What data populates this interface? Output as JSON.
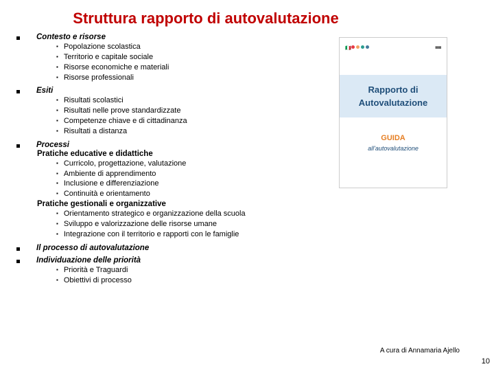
{
  "title": "Struttura rapporto di autovalutazione",
  "sections": [
    {
      "title": "Contesto e risorse",
      "items": [
        "Popolazione scolastica",
        "Territorio e capitale sociale",
        "Risorse economiche e materiali",
        "Risorse professionali"
      ]
    },
    {
      "title": "Esiti",
      "items": [
        "Risultati scolastici",
        "Risultati nelle prove standardizzate",
        "Competenze chiave e di cittadinanza",
        "Risultati a distanza"
      ]
    },
    {
      "title": "Processi",
      "subsections": [
        {
          "subhead": "Pratiche educative e didattiche",
          "items": [
            "Curricolo, progettazione, valutazione",
            "Ambiente di apprendimento",
            "Inclusione e differenziazione",
            "Continuità e orientamento"
          ]
        },
        {
          "subhead": "Pratiche gestionali e organizzative",
          "items": [
            "Orientamento strategico e organizzazione della scuola",
            "Sviluppo e valorizzazione delle risorse umane",
            "Integrazione con il territorio e rapporti con le famiglie"
          ]
        }
      ]
    },
    {
      "title": "Il processo di autovalutazione"
    },
    {
      "title": "Individuazione delle priorità",
      "items": [
        "Priorità e Traguardi",
        "Obiettivi di processo"
      ]
    }
  ],
  "cover": {
    "line1": "Rapporto di",
    "line2": "Autovalutazione",
    "guida": "GUIDA",
    "sub": "all'autovalutazione"
  },
  "credit": "A cura di Annamaria Ajello",
  "pagenum": "10"
}
